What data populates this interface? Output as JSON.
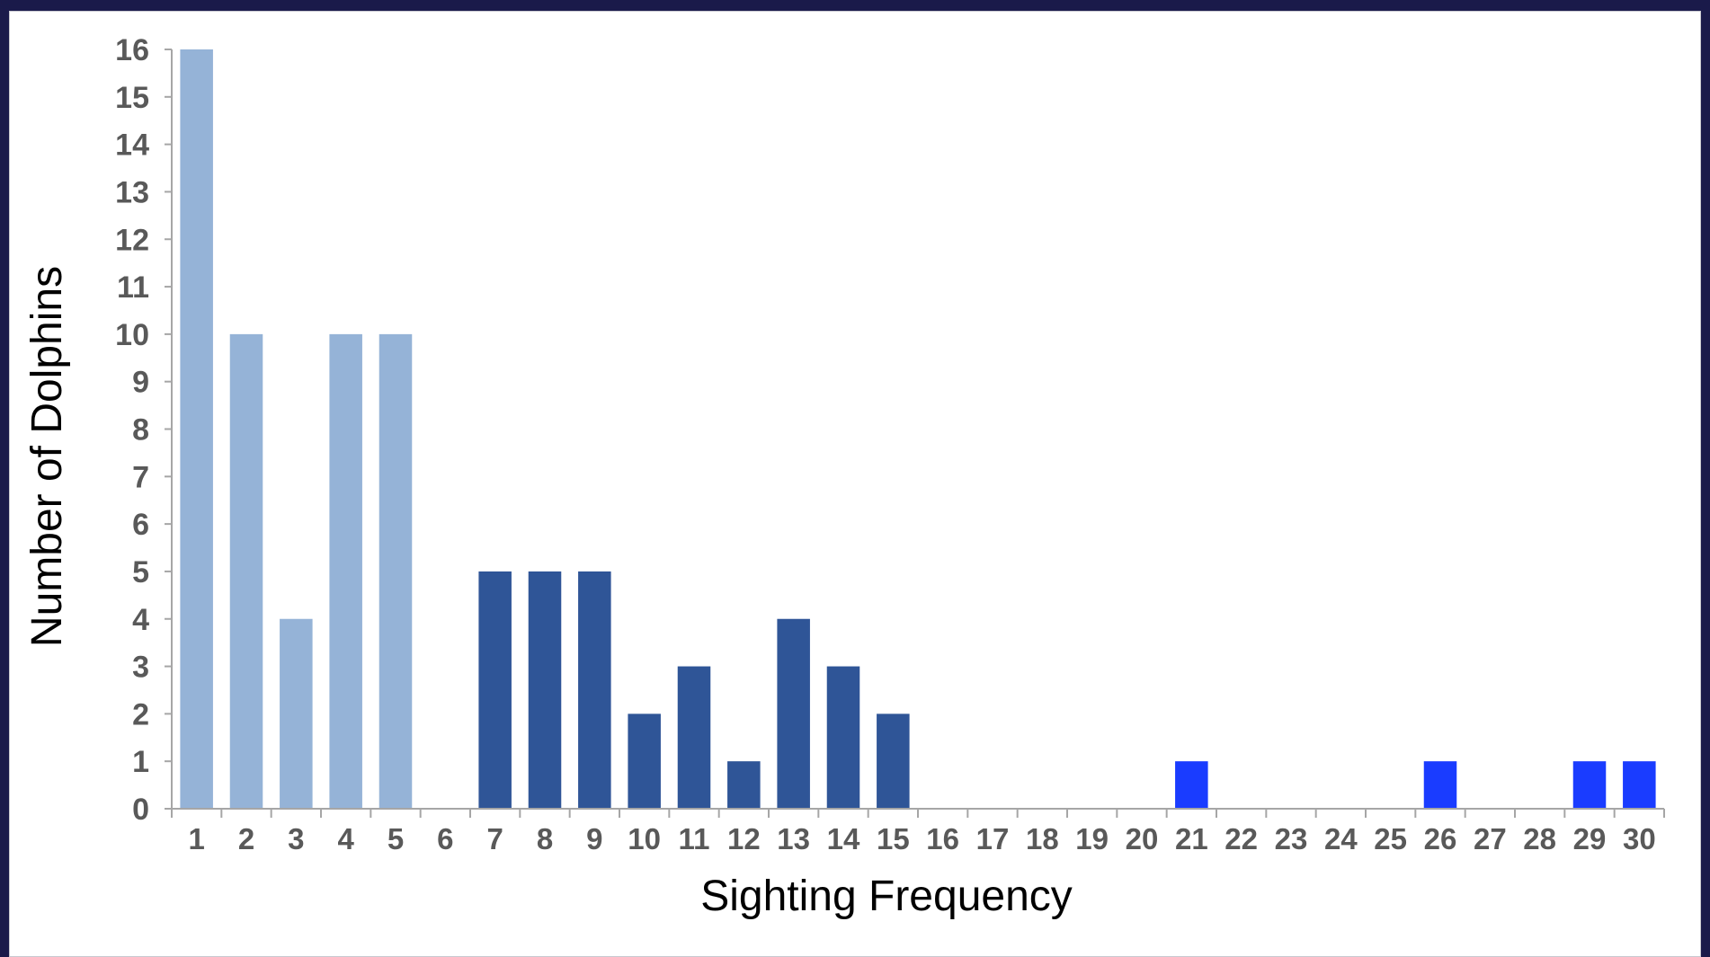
{
  "chart_data": {
    "type": "bar",
    "categories": [
      "1",
      "2",
      "3",
      "4",
      "5",
      "6",
      "7",
      "8",
      "9",
      "10",
      "11",
      "12",
      "13",
      "14",
      "15",
      "16",
      "17",
      "18",
      "19",
      "20",
      "21",
      "22",
      "23",
      "24",
      "25",
      "26",
      "27",
      "28",
      "29",
      "30"
    ],
    "values": [
      16,
      10,
      4,
      10,
      10,
      0,
      5,
      5,
      5,
      2,
      3,
      1,
      4,
      3,
      2,
      0,
      0,
      0,
      0,
      0,
      1,
      0,
      0,
      0,
      0,
      1,
      0,
      0,
      1,
      1
    ],
    "bar_colors": [
      "#95b3d7",
      "#95b3d7",
      "#95b3d7",
      "#95b3d7",
      "#95b3d7",
      "#95b3d7",
      "#2f5597",
      "#2f5597",
      "#2f5597",
      "#2f5597",
      "#2f5597",
      "#2f5597",
      "#2f5597",
      "#2f5597",
      "#2f5597",
      "#1a3cff",
      "#1a3cff",
      "#1a3cff",
      "#1a3cff",
      "#1a3cff",
      "#1a3cff",
      "#1a3cff",
      "#1a3cff",
      "#1a3cff",
      "#1a3cff",
      "#1a3cff",
      "#1a3cff",
      "#1a3cff",
      "#1a3cff",
      "#1a3cff"
    ],
    "title": "",
    "xlabel": "Sighting Frequency",
    "ylabel": "Number of Dolphins",
    "ylim": [
      0,
      16
    ],
    "yticks": [
      "0",
      "1",
      "2",
      "3",
      "4",
      "5",
      "6",
      "7",
      "8",
      "9",
      "10",
      "11",
      "12",
      "13",
      "14",
      "15",
      "16"
    ],
    "grid": false,
    "legend": "none"
  }
}
